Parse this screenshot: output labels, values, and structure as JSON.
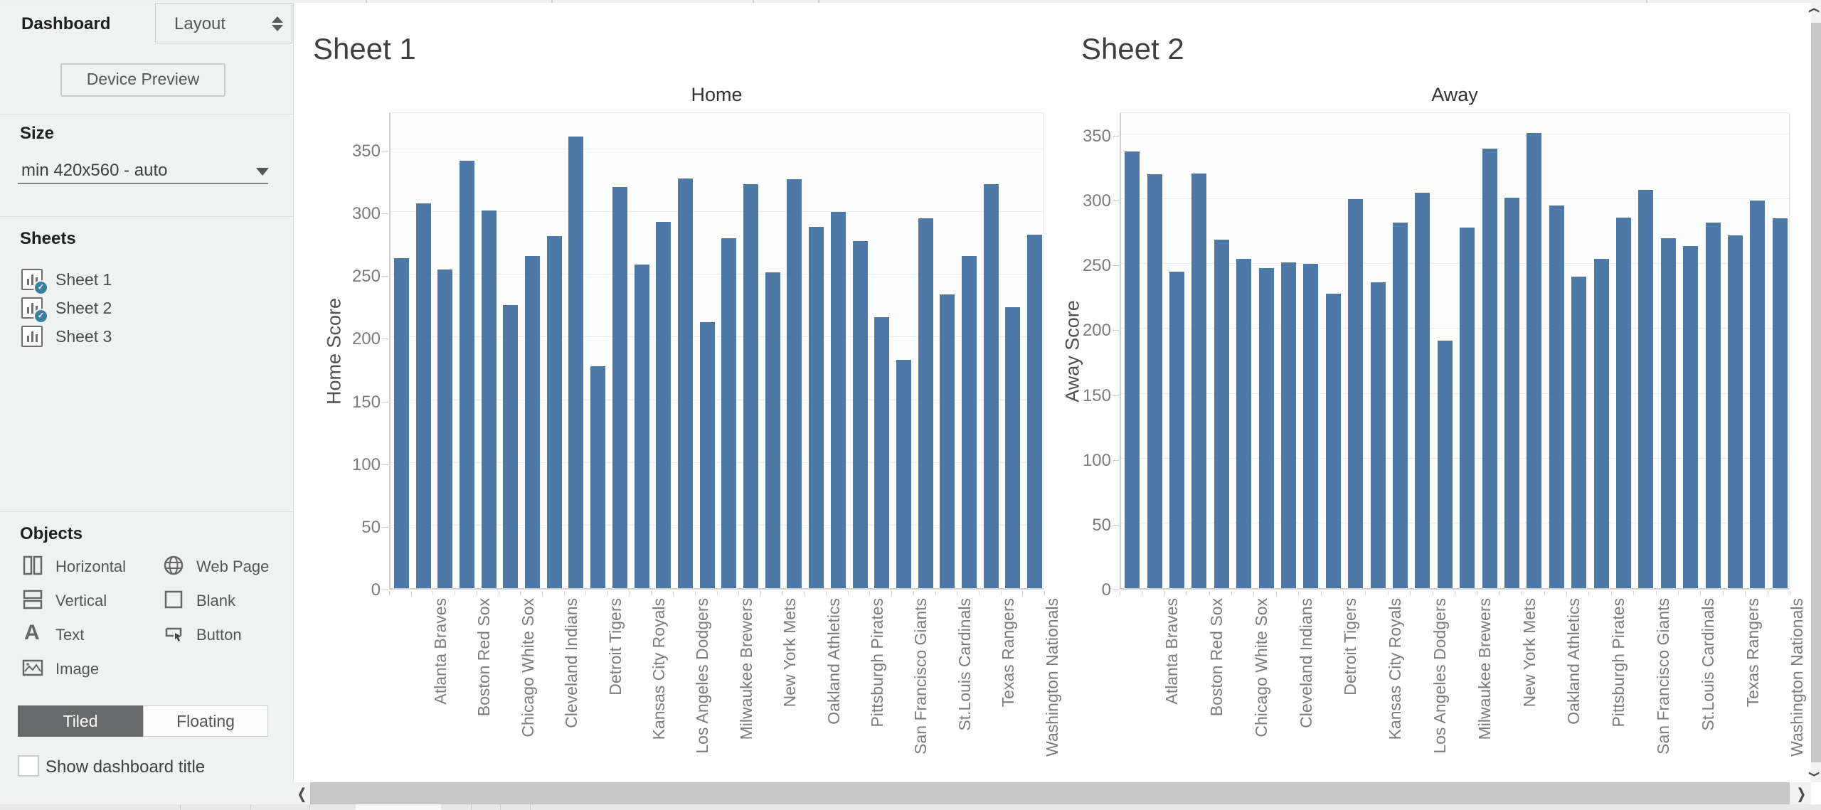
{
  "sidebar": {
    "tabs": {
      "dashboard": "Dashboard",
      "layout": "Layout"
    },
    "device_preview_label": "Device Preview",
    "size": {
      "header": "Size",
      "value": "min 420x560 - auto"
    },
    "sheets": {
      "header": "Sheets",
      "items": [
        {
          "label": "Sheet 1",
          "in_dashboard": true
        },
        {
          "label": "Sheet 2",
          "in_dashboard": true
        },
        {
          "label": "Sheet 3",
          "in_dashboard": false
        }
      ]
    },
    "objects": {
      "header": "Objects",
      "items": [
        {
          "label": "Horizontal",
          "icon": "horizontal-container-icon"
        },
        {
          "label": "Web Page",
          "icon": "web-page-icon"
        },
        {
          "label": "Vertical",
          "icon": "vertical-container-icon"
        },
        {
          "label": "Blank",
          "icon": "blank-icon"
        },
        {
          "label": "Text",
          "icon": "text-icon"
        },
        {
          "label": "Button",
          "icon": "button-icon"
        },
        {
          "label": "Image",
          "icon": "image-icon"
        }
      ]
    },
    "layout_mode": {
      "tiled": "Tiled",
      "floating": "Floating",
      "active": "Tiled"
    },
    "show_dashboard_title": {
      "label": "Show dashboard title",
      "checked": false
    }
  },
  "main": {
    "sheet1_title": "Sheet 1",
    "sheet2_title": "Sheet 2"
  },
  "colors": {
    "bar": "#4e79a7",
    "sidebar_bg": "#eef3f2",
    "sheet_badge": "#3a7fa2",
    "tiled_active_bg": "#67696a",
    "gridline": "#ececec",
    "axis_text": "#7b7b7b"
  },
  "chart_data": [
    {
      "type": "bar",
      "title": "Home",
      "ylabel": "Home Score",
      "ylim": [
        0,
        380
      ],
      "yticks": [
        0,
        50,
        100,
        150,
        200,
        250,
        300,
        350
      ],
      "grid": true,
      "legend": "none",
      "values": [
        263,
        307,
        254,
        341,
        301,
        226,
        265,
        281,
        360,
        177,
        320,
        258,
        292,
        327,
        212,
        279,
        322,
        252,
        326,
        288,
        300,
        277,
        216,
        182,
        295,
        234,
        265,
        322,
        224,
        282
      ],
      "visible_x_labels": [
        "Atlanta Braves",
        "Boston Red Sox",
        "Chicago White Sox",
        "Cleveland Indians",
        "Detroit Tigers",
        "Kansas City Royals",
        "Los Angeles Dodgers",
        "Milwaukee Brewers",
        "New York Mets",
        "Oakland Athletics",
        "Pittsburgh Pirates",
        "San Francisco Giants",
        "St.Louis Cardinals",
        "Texas Rangers",
        "Washington Nationals"
      ],
      "label_layout": "one label under every second bar (30 bars, 15 visible labels)"
    },
    {
      "type": "bar",
      "title": "Away",
      "ylabel": "Away Score",
      "ylim": [
        0,
        368
      ],
      "yticks": [
        0,
        50,
        100,
        150,
        200,
        250,
        300,
        350
      ],
      "grid": true,
      "legend": "none",
      "values": [
        337,
        319,
        244,
        320,
        269,
        254,
        247,
        251,
        250,
        227,
        300,
        236,
        282,
        305,
        191,
        278,
        339,
        301,
        351,
        295,
        240,
        254,
        286,
        307,
        270,
        264,
        282,
        272,
        299,
        285
      ],
      "visible_x_labels": [
        "Atlanta Braves",
        "Boston Red Sox",
        "Chicago White Sox",
        "Cleveland Indians",
        "Detroit Tigers",
        "Kansas City Royals",
        "Los Angeles Dodgers",
        "Milwaukee Brewers",
        "New York Mets",
        "Oakland Athletics",
        "Pittsburgh Pirates",
        "San Francisco Giants",
        "St.Louis Cardinals",
        "Texas Rangers",
        "Washington Nationals"
      ],
      "label_layout": "one label under every second bar (30 bars, 15 visible labels)"
    }
  ]
}
